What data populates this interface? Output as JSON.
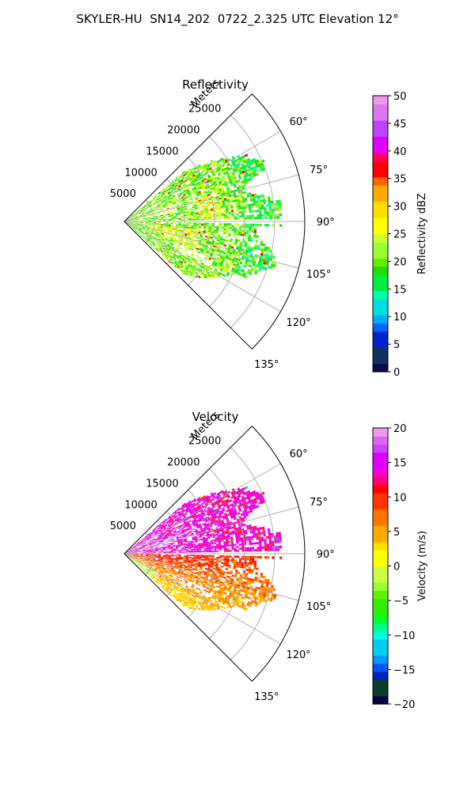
{
  "figure_title": "SKYLER-HU  SN14_202  0722_2.325 UTC Elevation 12°",
  "chart_data": [
    {
      "type": "heatmap",
      "title": "Reflectivity",
      "radial_label": "Meters",
      "radial_ticks": [
        5000,
        10000,
        15000,
        20000,
        25000
      ],
      "radial_tick_labels": [
        "5000",
        "10000",
        "15000",
        "20000",
        "25000"
      ],
      "r_max": 30000,
      "azimuth_range": [
        45,
        135
      ],
      "azimuth_ticks": [
        60,
        75,
        90,
        105,
        120,
        135
      ],
      "azimuth_tick_labels": [
        "60°",
        "75°",
        "90°",
        "105°",
        "120°",
        "135°"
      ],
      "grid": true,
      "colorbar": {
        "label": "Reflectivity dBZ",
        "range": [
          0,
          50
        ],
        "ticks": [
          0,
          5,
          10,
          15,
          20,
          25,
          30,
          35,
          40,
          45,
          50
        ],
        "tick_labels": [
          "0",
          "5",
          "10",
          "15",
          "20",
          "25",
          "30",
          "35",
          "40",
          "45",
          "50"
        ]
      },
      "field_summary": {
        "dominant_values_dBZ": [
          15,
          25
        ],
        "max_value_dBZ": 40,
        "echo_extent_m": 26000
      }
    },
    {
      "type": "heatmap",
      "title": "Velocity",
      "radial_label": "Meters",
      "radial_ticks": [
        5000,
        10000,
        15000,
        20000,
        25000
      ],
      "radial_tick_labels": [
        "5000",
        "10000",
        "15000",
        "20000",
        "25000"
      ],
      "r_max": 30000,
      "azimuth_range": [
        45,
        135
      ],
      "azimuth_ticks": [
        60,
        75,
        90,
        105,
        120,
        135
      ],
      "azimuth_tick_labels": [
        "60°",
        "75°",
        "90°",
        "105°",
        "120°",
        "135°"
      ],
      "grid": true,
      "colorbar": {
        "label": "Velocity (m/s)",
        "range": [
          -20,
          20
        ],
        "ticks": [
          -20,
          -15,
          -10,
          -5,
          0,
          5,
          10,
          15,
          20
        ],
        "tick_labels": [
          "−20",
          "−15",
          "−10",
          "−5",
          "0",
          "5",
          "10",
          "15",
          "20"
        ]
      },
      "field_summary": {
        "north_of_90deg_ms": [
          10,
          18
        ],
        "south_of_90deg_ms": [
          0,
          10
        ],
        "echo_extent_m": 26000
      }
    }
  ],
  "colors": {
    "background": "#ffffff",
    "grid": "#b0b0b0",
    "axis": "#000000"
  }
}
